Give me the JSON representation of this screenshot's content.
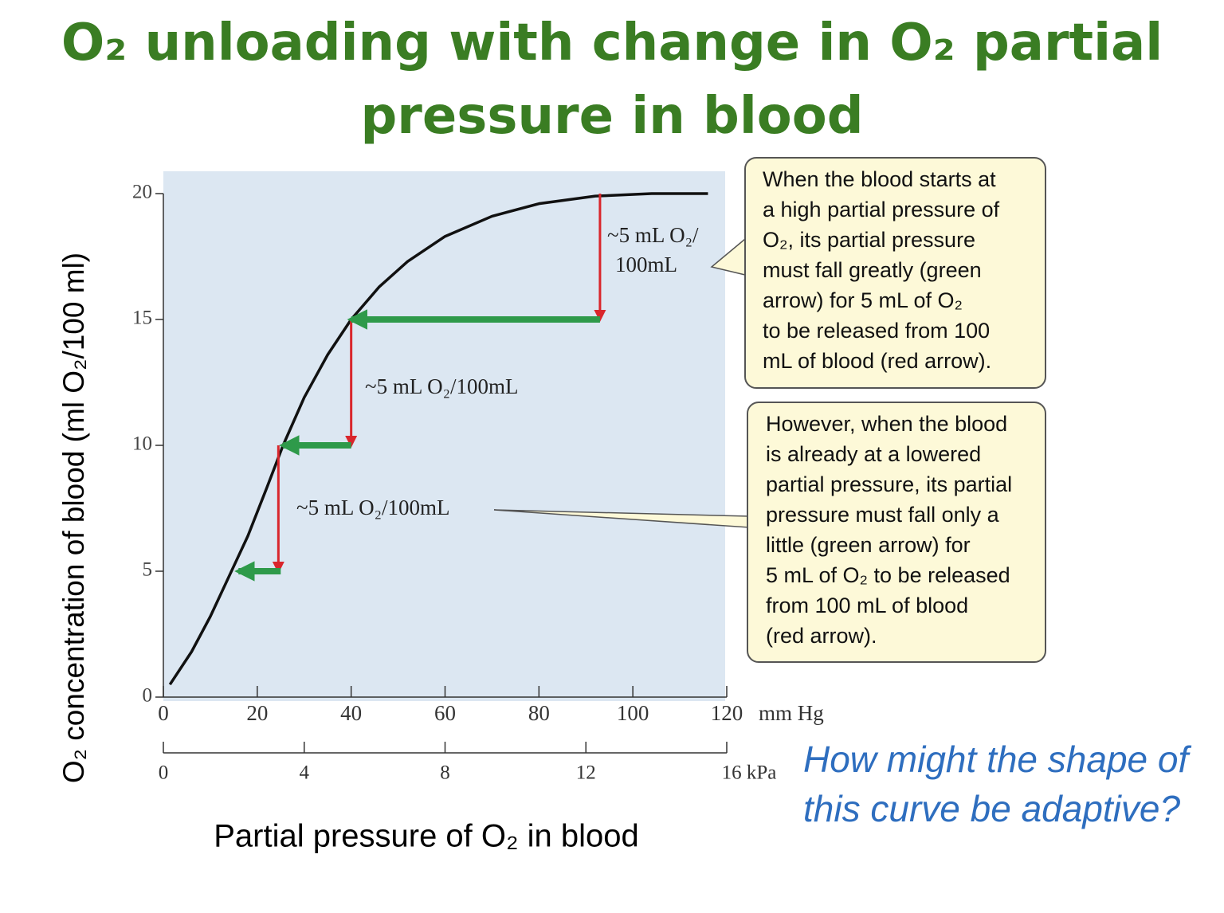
{
  "title": "O₂ unloading with change in O₂ partial pressure in blood",
  "chart_data": {
    "type": "line",
    "x_label": "Partial pressure of O₂ in blood",
    "y_label": "O₂ concentration of blood (ml O₂/100 ml)",
    "x_unit": "mm Hg",
    "xlim": [
      0,
      120
    ],
    "xticks": [
      0,
      20,
      40,
      60,
      80,
      100,
      120
    ],
    "x2lim": [
      0,
      16
    ],
    "x2ticks": [
      0,
      4,
      8,
      12,
      {
        "value": 16,
        "label": "16 kPa"
      }
    ],
    "ylim": [
      0,
      20
    ],
    "yticks": [
      0,
      5,
      10,
      15,
      20
    ],
    "series": [
      {
        "color": "#111111",
        "x": [
          1.4,
          6,
          10,
          14,
          18,
          22,
          25.5,
          30,
          35,
          40,
          46,
          52,
          60,
          70,
          80,
          92,
          104,
          116
        ],
        "values": [
          0.5,
          1.8,
          3.2,
          4.8,
          6.4,
          8.3,
          10,
          11.9,
          13.6,
          15,
          16.3,
          17.3,
          18.3,
          19.1,
          19.6,
          19.9,
          20,
          20
        ]
      }
    ],
    "arrows": [
      {
        "color": "#d9262c",
        "x": [
          93,
          93
        ],
        "y": [
          20,
          15
        ]
      },
      {
        "color": "#d9262c",
        "x": [
          40,
          40
        ],
        "y": [
          15,
          10
        ]
      },
      {
        "color": "#d9262c",
        "x": [
          24.5,
          24.5
        ],
        "y": [
          10,
          5
        ]
      },
      {
        "color": "#2e9a4a",
        "x": [
          93,
          40
        ],
        "y": [
          15,
          15
        ]
      },
      {
        "color": "#2e9a4a",
        "x": [
          40,
          25.5
        ],
        "y": [
          10,
          10
        ]
      },
      {
        "color": "#2e9a4a",
        "x": [
          25,
          16
        ],
        "y": [
          5,
          5
        ]
      }
    ],
    "annotations": [
      [
        "~5 mL O₂/",
        "100mL"
      ],
      [
        "~5 mL O₂/100mL"
      ],
      [
        "~5 mL O₂/100mL"
      ]
    ],
    "callouts": [
      [
        "When the blood starts at",
        "a high partial pressure of",
        "O₂, its partial pressure",
        "must fall greatly (green",
        "arrow) for 5 mL of O₂",
        "to be released from 100",
        "mL of blood (red arrow)."
      ],
      [
        "However, when the blood",
        "is already at a lowered",
        "partial pressure, its partial",
        "pressure must fall only a",
        "little (green arrow) for",
        "5 mL of O₂ to be released",
        "from 100 mL of blood",
        "(red arrow)."
      ]
    ]
  },
  "question": "How might the shape of this curve be adaptive?"
}
